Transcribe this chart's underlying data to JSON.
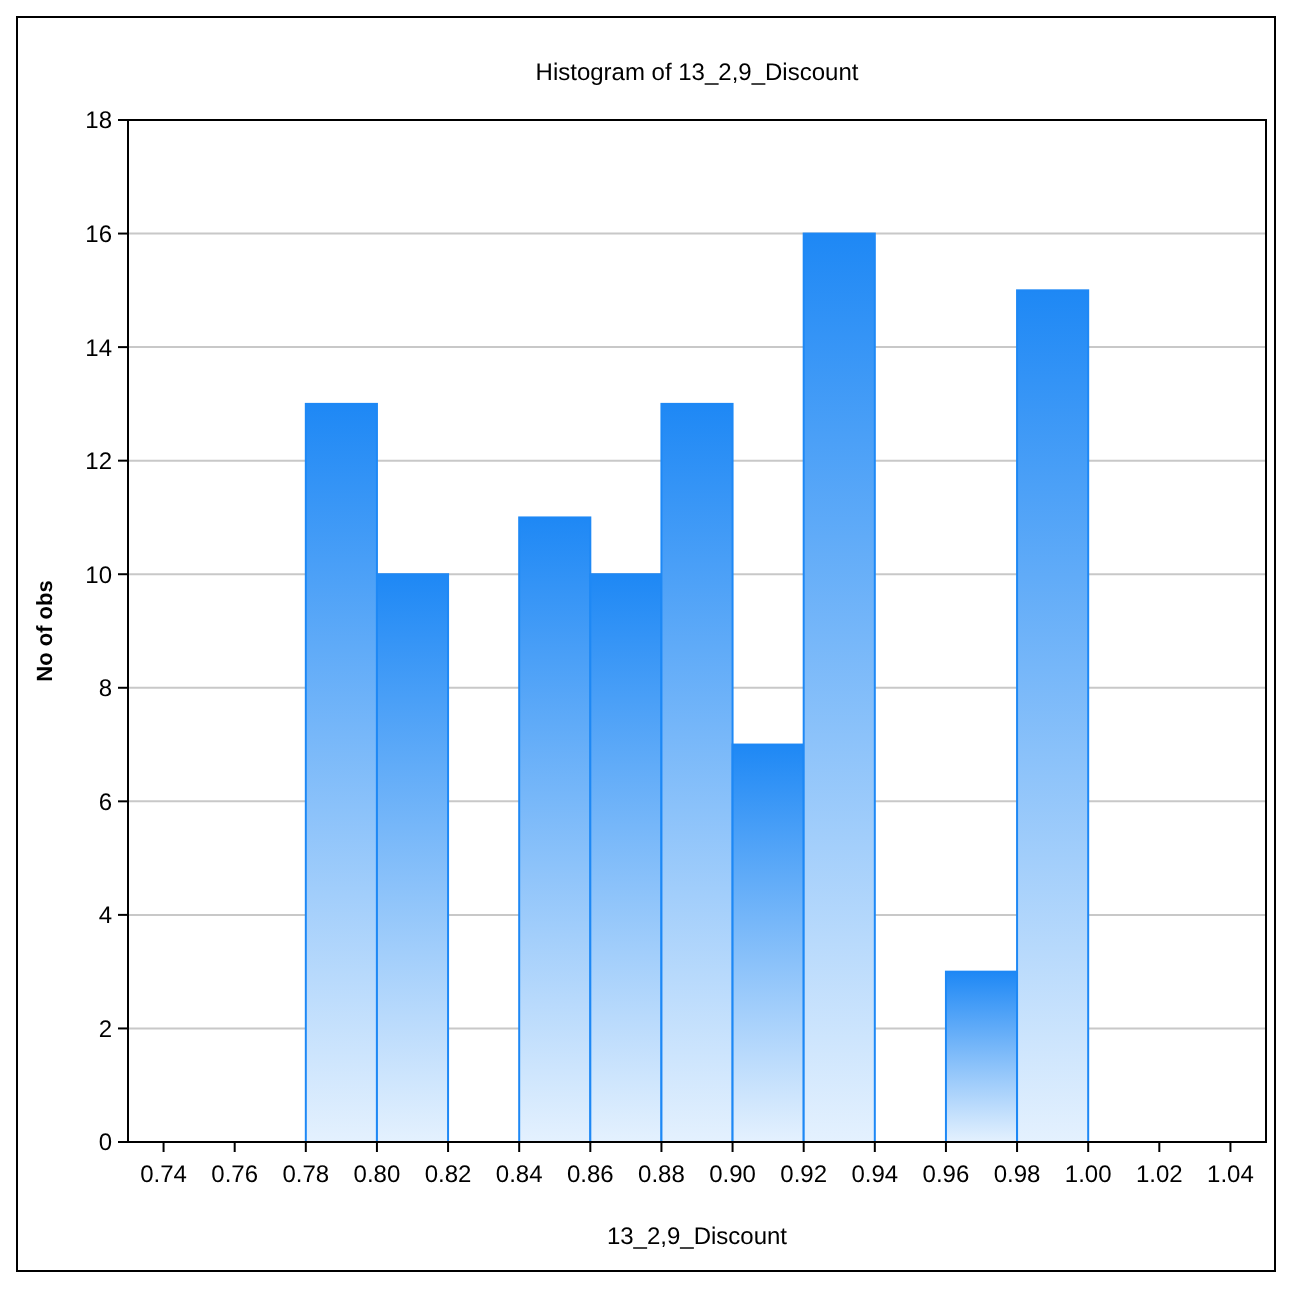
{
  "chart_data": {
    "type": "histogram",
    "title": "Histogram of 13_2,9_Discount",
    "xlabel": "13_2,9_Discount",
    "ylabel": "No of obs",
    "bins": [
      0.78,
      0.8,
      0.82,
      0.84,
      0.86,
      0.88,
      0.9,
      0.92,
      0.94,
      0.96,
      0.98,
      1.0
    ],
    "values": [
      13,
      10,
      0,
      11,
      10,
      13,
      7,
      16,
      0,
      3,
      15
    ],
    "color": "#1e88f5",
    "xlim": [
      0.73,
      1.05
    ],
    "xticks": [
      {
        "value": 0.74,
        "label": "0.74"
      },
      {
        "value": 0.76,
        "label": "0.76"
      },
      {
        "value": 0.78,
        "label": "0.78"
      },
      {
        "value": 0.8,
        "label": "0.80"
      },
      {
        "value": 0.82,
        "label": "0.82"
      },
      {
        "value": 0.84,
        "label": "0.84"
      },
      {
        "value": 0.86,
        "label": "0.86"
      },
      {
        "value": 0.88,
        "label": "0.88"
      },
      {
        "value": 0.9,
        "label": "0.90"
      },
      {
        "value": 0.92,
        "label": "0.92"
      },
      {
        "value": 0.94,
        "label": "0.94"
      },
      {
        "value": 0.96,
        "label": "0.96"
      },
      {
        "value": 0.98,
        "label": "0.98"
      },
      {
        "value": 1.0,
        "label": "1.00"
      },
      {
        "value": 1.02,
        "label": "1.02"
      },
      {
        "value": 1.04,
        "label": "1.04"
      }
    ],
    "ylim": [
      0,
      18
    ],
    "yticks": [
      0,
      2,
      4,
      6,
      8,
      10,
      12,
      14,
      16,
      18
    ],
    "grid": "y"
  }
}
